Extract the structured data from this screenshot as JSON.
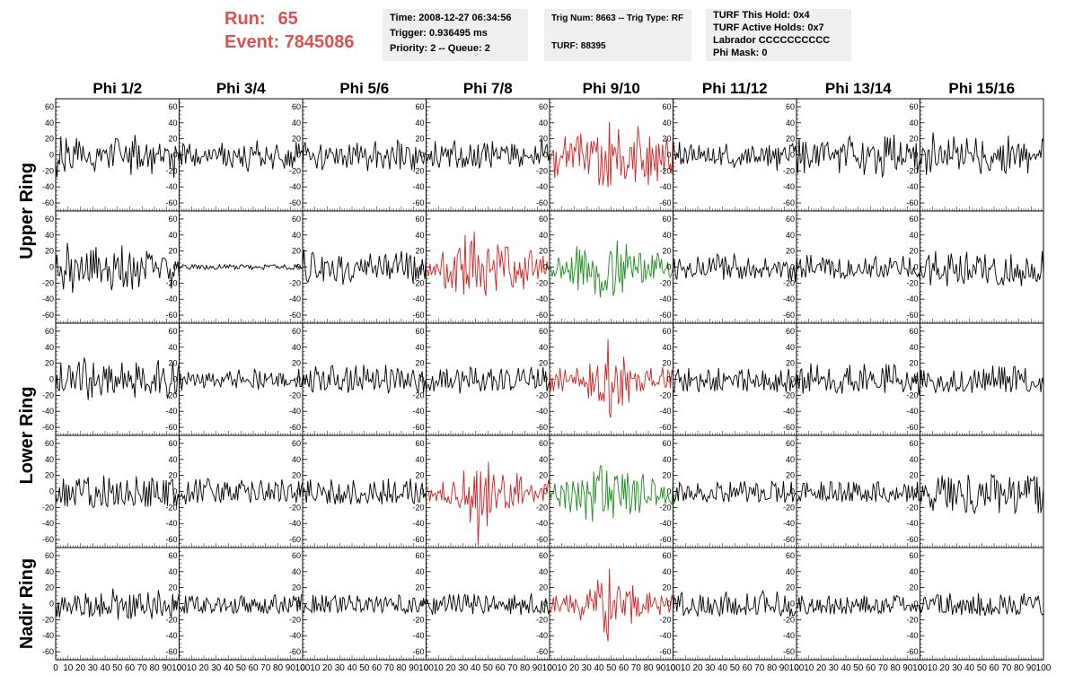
{
  "header": {
    "run_label": "Run:",
    "run_value": "65",
    "event_label": "Event:",
    "event_value": "7845086",
    "time": "Time: 2008-12-27 06:34:56",
    "trigger": "Trigger: 0.936495 ms",
    "priority": "Priority: 2 -- Queue: 2",
    "trig_num": "Trig Num: 8663 -- Trig Type: RF",
    "turf": "TURF: 88395",
    "turf_hold": "TURF This Hold: 0x4",
    "turf_active": "TURF Active Holds: 0x7",
    "labrador": "Labrador CCCCCCCCCC",
    "phi_mask": "Phi Mask: 0",
    "accent_color": "#d9534f"
  },
  "chart_data": {
    "type": "line",
    "columns": [
      "Phi 1/2",
      "Phi 3/4",
      "Phi 5/6",
      "Phi 7/8",
      "Phi 9/10",
      "Phi 11/12",
      "Phi 13/14",
      "Phi 15/16"
    ],
    "ring_labels": [
      {
        "text": "Upper Ring",
        "rows": [
          0,
          1
        ]
      },
      {
        "text": "Lower Ring",
        "rows": [
          2,
          3
        ]
      },
      {
        "text": "Nadir Ring",
        "rows": [
          4,
          4
        ]
      }
    ],
    "xlim": [
      0,
      100
    ],
    "ylim": [
      -70,
      70
    ],
    "x_ticks": [
      0,
      10,
      20,
      30,
      40,
      50,
      60,
      70,
      80,
      90,
      100
    ],
    "y_ticks": [
      -60,
      -40,
      -20,
      0,
      20,
      40,
      60
    ],
    "colors": {
      "normal": "#000000",
      "red": "#cc2222",
      "green": "#1a8c1a"
    },
    "row_color_codes": [
      [
        "k",
        "k",
        "k",
        "k",
        "r",
        "k",
        "k",
        "k"
      ],
      [
        "k",
        "k",
        "k",
        "r",
        "g",
        "k",
        "k",
        "k"
      ],
      [
        "k",
        "k",
        "k",
        "k",
        "r",
        "k",
        "k",
        "k"
      ],
      [
        "k",
        "k",
        "k",
        "r",
        "g",
        "k",
        "k",
        "k"
      ],
      [
        "k",
        "k",
        "k",
        "k",
        "r",
        "k",
        "k",
        "k"
      ]
    ],
    "traces": [
      [
        "-7,-28,-6,-12,23,-9,-12,-21,21,2,10,-10,-16,-16,11,0,21,-6,17,7,-8,11,-1,-6,-9,-3,4,-10,-13,-10,-21,-8,8,-2,8,-8,4,6,2,6,-4,-16,10,13,-14,3,20,20,19,10,1,-4,-8,0,11,-4,-10,9,-25,17,-3,25,7,-18,12,-15,-5,-14,-3,2,13,-15,-3,7,-24,9,-12,0,2,1,14,-8,-2,-9,8,5,7,4,-17,2,-6,-29,11,4,2,-10",
        "-10,4,-13,14,11,-11,8,1,14,-2,-9,0,-14,8,-10,-2,-12,-3,-2,-2,5,-3,-8,7,-4,-5,5,7,4,-5,-2,9,-1,15,-12,8,-14,-10,6,-4,-11,-16,5,3,-2,-3,8,-11,-2,-15,11,-4,-16,-21,-8,9,9,-1,4,1,18,-1,4,-14,-4,-8,-12,10,0,-3,-6,2,-18,-5,4,13,5,-4,-6,-6,-10,-17,1,-13,6,-14,4,-16,-2,-9,16,-3,14,1,5,2",
        "-16,11,15,1,8,3,-6,-5,2,-2,-9,-17,-2,4,13,-19,-14,-10,7,-5,0,9,3,3,-2,-11,8,-11,-3,7,7,-13,-1,-3,-16,-2,13,-11,-12,9,7,-2,15,-11,2,11,-3,-3,8,-3,-20,-5,-1,-9,-6,9,17,-16,4,1,2,-9,-17,-1,-4,7,-3,-18,3,10,0,-7,-12,18,15,-18,14,-6,-12,-10,9,9,7,-5,-19,1,-19,10,-11,-2,6,2,-8,-11,2,3",
        "-1,-8,0,-6,5,-14,-10,17,-3,-10,-16,-6,11,-2,4,8,-3,7,-15,8,0,12,18,-4,-16,-5,-6,9,-16,-4,-15,-2,-12,-3,13,-4,-14,7,-13,-11,13,-17,-10,3,8,15,-8,14,3,-7,-16,17,-2,4,8,-5,-2,-5,10,5,7,2,11,5,-11,-11,14,-6,13,-5,8,-2,-15,-2,-13,8,-2,-1,-2,-4,-3,0,-8,-11,11,-6,2,-11,0,20,-1,2,10,13,-7,2",
        "-14,-2,2,6,-29,4,-26,-14,-5,-1,-4,6,23,-15,5,-8,14,13,-16,10,4,21,23,-14,27,4,-1,-19,-2,16,-24,-4,17,1,17,11,3,22,-38,-27,11,-38,-25,5,-16,-40,41,-38,14,-2,10,4,-18,32,4,-26,-2,-3,-30,-26,-13,-16,9,9,-18,16,-34,4,36,19,7,-19,-6,-27,-25,9,-38,23,-26,9,-4,-20,12,-33,14,-6,-13,13,-21,0,20,6,-18,-11,-24,27",
        "18,7,-6,3,-4,16,-12,-4,-11,9,4,-11,-2,9,13,-7,7,-5,-6,-5,12,-5,4,-2,5,-8,-5,9,-7,-5,-7,8,-11,-6,-6,-5,10,-13,2,1,4,14,-2,-10,-10,-10,-6,-16,-11,-8,-5,-3,-13,2,-7,1,7,-11,8,-10,-3,11,6,-9,-2,-9,-2,-8,8,6,-8,1,9,-14,12,-11,-4,5,-5,8,-20,9,-12,3,0,6,9,-3,-5,-7,12,11,14,4,11,-4",
        "-1,-23,21,-10,-7,16,-23,16,3,-5,-16,-7,-9,7,13,-11,11,-14,4,13,15,-7,11,12,16,-1,-6,0,3,-5,7,0,6,-23,10,3,13,10,-14,1,19,23,10,16,-2,-1,-8,-3,-12,-17,-5,15,-25,-14,-2,10,-3,5,7,10,6,-24,-13,7,-9,-2,-28,-22,23,-3,22,-1,21,-6,-6,25,-16,-18,-1,-9,16,-13,-4,-9,-8,14,3,8,-5,3,10,-16,15,-23,-12,-6",
        "-3,-12,8,6,2,-25,5,6,-22,-9,28,12,-11,-13,-10,8,11,-9,-10,6,0,-13,19,-5,-3,-5,23,8,2,10,-18,-4,14,-11,-11,-2,21,3,2,3,-1,-9,4,21,-2,-4,-17,-24,17,-4,0,-9,-12,-19,-19,-1,-10,2,1,-6,7,-8,11,-20,12,-20,-23,-7,24,-17,5,11,4,-12,-1,10,14,-16,8,-8,14,-6,8,-23,3,-6,-3,0,1,-6,1,-1,6,-4,20,16"
      ],
      [
        "-2,15,-10,-11,1,-11,-28,-4,-10,30,14,-18,10,-32,-14,9,7,3,-17,1,13,-15,-11,-4,17,-14,-17,21,-14,21,-8,25,-14,12,5,-19,-4,-3,-3,12,-18,1,-9,-29,-20,17,-3,7,12,-12,-16,27,-25,-17,-5,-25,4,18,-8,-28,12,-11,-11,7,-25,-7,12,-1,-2,-15,20,10,16,10,15,-6,-4,7,-2,-1,-14,0,11,11,11,8,-4,-15,-2,-27,-6,-12,7,-1,7,-14",
        "-3,-1,1,3,2,2,-1,-1,-3,-1,3,-1,3,2,-2,2,-2,2,2,-1,-3,2,-2,-2,1,-1,1,-2,-3,-2,-1,3,-1,-1,0,3,-1,2,-1,3,1,1,2,-3,1,-2,-2,2,3,2,0,0,2,2,-2,2,-3,0,-1,1,-1,0,0,-1,-1,-3,3,1,2,0,2,2,2,3,2,-1,1,-2,-1,1,-1,3,0,-3,-2,-1,-3,-2,-3,3,0,3,-1,1,-2,0",
        "-2,22,-2,-16,-19,-14,-10,17,18,11,-6,-13,-10,-5,-8,13,-18,6,5,7,3,-12,-5,8,-8,-16,-17,2,14,-1,13,-22,-12,-4,1,6,-14,-18,-11,-13,0,4,6,0,-5,10,-4,-6,9,-10,7,0,17,3,-8,-1,2,-13,-1,14,2,-7,-9,12,16,-11,8,-15,-1,-8,5,9,17,-7,4,7,20,-2,-10,-4,18,-15,10,15,-7,-20,13,-16,0,-15,1,-10,10,-2,-15,14",
        "-5,-4,-11,4,-9,-6,1,-10,4,0,-5,-10,10,19,-23,-27,4,-19,-12,-5,-26,-2,13,-31,14,20,24,-4,4,-34,40,-21,-9,-27,27,33,-13,44,-6,-25,15,2,-25,4,1,-28,-36,18,23,-6,-3,-3,9,-6,-30,28,18,-1,20,6,-12,25,24,25,-7,-11,-24,-25,7,-20,-4,-10,6,-14,-3,-28,12,-5,-17,9,20,20,-10,-7,-1,10,-15,1,10,-7,14,-8,-8,7,-3,0",
        "-4,1,-12,-4,-11,-8,-1,12,3,-14,2,-9,-6,7,-6,-4,-18,12,-21,-8,3,26,-29,22,-8,15,-22,21,13,-19,5,-12,-12,8,-4,-34,2,-12,-9,-38,-18,-29,-26,-16,-29,-12,13,20,14,-36,-29,-10,33,-11,-20,16,-32,7,-15,29,-2,12,13,-3,-13,14,-3,0,-8,17,17,-19,-18,9,-16,-5,4,-8,-12,15,-14,9,-3,18,13,-2,10,-5,-8,-3,-1,6,-11,-13,-7,-1",
        "-5,10,-12,-15,3,10,0,-4,0,-3,-14,1,-4,5,-7,-12,-8,-9,-6,13,4,-6,-9,6,-9,-10,-8,-2,12,-6,4,11,-2,-4,16,14,0,3,11,-16,13,5,-10,3,-13,-1,-1,17,8,-3,-1,-14,1,-15,-6,1,-12,0,11,-6,-11,-1,2,-14,-1,-5,-7,-2,-13,-1,-3,11,-4,0,-12,-8,-2,-2,4,2,-8,6,5,-13,-4,5,1,6,2,-16,-1,-18,-6,2,-19,9",
        "13,-3,2,10,-13,-2,-5,-13,15,3,-7,15,-5,-5,-7,-2,3,3,5,-5,12,8,-8,10,3,10,-10,7,5,-14,-3,-5,-6,10,-14,-8,-7,-14,-10,-11,9,-10,4,-6,-11,-7,-7,-2,4,-4,-7,-8,-2,11,-7,-8,4,-13,1,-2,10,13,-9,-12,-10,2,-7,-13,3,0,-11,-2,12,-1,1,6,7,6,-3,-7,-9,1,14,-2,-2,-3,-12,12,-7,-9,-1,-6,-9,-12,-8,-16",
        "6,-5,-12,-13,-5,8,10,15,-23,-6,5,-5,20,-10,-1,-15,-14,-10,-10,2,-8,-24,15,-3,17,7,-7,-8,4,-18,-15,14,-10,-17,-21,8,19,-16,-3,-12,-13,3,0,-9,14,5,11,7,-14,-6,16,-12,-20,-1,-3,1,2,11,-6,-17,-22,-21,-19,-13,-23,-11,10,-14,-15,-18,16,-12,-18,-1,-13,4,-14,-3,-24,-4,-13,-14,11,4,-12,-12,4,-15,0,-16,-18,-8,-16,-7,20,-8"
      ],
      [
        "-16,5,-13,-14,21,-10,-14,-12,-4,-1,17,16,-11,10,-3,-12,3,15,22,-13,-13,13,27,20,-7,-26,1,2,-23,21,-8,-7,-1,6,-10,-20,-6,16,0,13,-17,17,-4,13,-13,-17,4,-10,3,-6,1,21,-12,8,-5,-10,11,-3,5,-12,-5,-23,21,-1,16,0,-11,14,4,-15,-6,-7,-9,-18,-3,-5,6,-15,17,24,-17,-1,6,14,-2,-7,-24,-19,-6,-6,21,2,-18,-15,12,21",
        "-13,8,-14,1,3,-3,-6,9,1,-2,5,5,-8,-3,6,2,-5,-4,6,-11,-7,6,-2,8,-2,-2,7,-8,-5,0,-1,-5,-10,3,-3,1,3,7,-1,10,3,-8,-1,0,-11,5,12,1,-4,3,-3,-3,0,-1,-3,-5,-9,-10,13,8,-2,-13,10,-6,-6,-10,8,-2,1,2,3,8,-6,-6,-4,4,-9,7,7,-6,7,-9,0,-7,-6,-6,-1,-1,-2,1,-10,-4,13,-9,-9,2",
        "-10,5,-7,6,-4,-10,11,-14,-16,2,16,6,9,-1,-14,3,10,-13,-12,-9,6,-7,16,17,6,-7,-6,6,-12,-10,-14,0,-2,8,15,-17,-9,11,-13,-12,3,17,-7,-8,3,-6,-13,18,4,-2,13,-3,0,-4,9,-13,-7,12,10,-11,-7,-1,-1,-3,18,-6,-17,-13,12,11,3,-11,0,14,8,-10,11,4,-12,0,-8,8,-6,-9,5,12,2,-6,-13,-17,6,3,10,-17,-1,-11",
        "-14,-7,-7,-14,-5,4,-15,-4,-2,-8,-2,12,-10,9,8,-10,13,-10,-7,2,-11,-6,-3,3,12,6,-18,-5,10,-3,4,4,-4,-10,15,13,-5,-5,14,-5,-1,-6,-15,-5,7,-14,-7,1,9,2,13,-14,4,-1,-3,-14,-9,8,13,-12,-11,5,11,7,5,-14,-9,-11,-9,-4,4,14,-2,-1,8,12,2,-4,-5,-7,9,15,0,5,-11,-9,13,-8,-8,-5,15,-3,10,-15,-7,-3",
        "12,-14,2,-15,-3,6,3,-12,14,-2,-15,0,12,-3,-2,-2,4,5,-5,3,-6,14,6,-9,0,-7,3,-10,-4,-6,-24,20,-21,9,-16,-6,4,17,-27,-16,-27,-17,-28,20,-1,50,-42,-48,-3,-17,-9,17,5,-31,-23,12,-33,28,10,-14,9,-29,11,1,1,1,8,-15,6,2,-15,-4,-14,-7,8,10,2,-2,14,-8,-2,-8,-6,-4,-6,4,4,15,-2,-10,-9,11,8,-11,12,4",
        "-13,-16,4,7,13,-4,3,-6,-15,7,-6,-15,14,-9,2,-1,0,2,3,-12,-16,7,-3,-1,-10,0,-5,12,8,-13,-9,2,-15,3,-14,14,-8,-12,-13,8,-3,3,0,4,2,-3,-7,3,5,4,-11,10,7,12,-14,1,-7,-15,13,2,-4,-5,0,-10,5,2,-9,-7,-6,11,-14,7,-5,-7,2,-13,-8,-4,-14,6,-16,3,-8,11,-7,-9,-4,-16,3,13,-15,0,-10,-8,-6,11",
        "-16,5,-12,11,13,-18,3,-11,-10,9,-15,20,-1,-3,2,-3,18,-6,-3,3,0,3,0,-14,-4,13,-13,-6,-1,-2,-15,-17,-11,-10,-2,-18,-1,6,3,14,-7,18,-8,-3,-14,-3,-3,-11,-15,11,6,-12,19,8,-13,-1,2,10,-2,7,-5,-5,-10,-10,-10,-7,14,6,-17,19,-4,18,-3,-2,-5,18,16,-4,1,-5,-6,0,-16,-12,-7,9,-4,-8,-14,3,-5,7,-6,9,-20,-6",
        "-11,12,-9,11,-6,-10,8,4,-2,-1,-3,-10,-17,-10,2,-10,4,-3,-15,-10,-8,-3,-16,-8,3,-10,11,-4,-15,-10,-12,-9,10,-14,-15,-12,-9,-6,-1,4,-17,-2,12,-4,-11,10,-3,-7,-11,13,-14,8,-7,8,-8,-3,17,-10,2,-8,0,16,-12,15,-7,15,-16,4,-5,4,-16,-9,15,16,-13,10,11,-1,7,-1,-4,14,-12,-15,-15,-12,-3,-3,-8,-10,-8,-7,1,-16,2,-6"
      ],
      [
        "-4,-13,-8,5,-14,-7,16,-18,9,-19,8,-11,-7,6,-8,-17,14,7,16,-2,-5,-1,14,11,10,18,-17,-4,-17,-20,-18,6,-7,2,-2,-17,-15,20,-6,-17,-19,17,0,-2,8,-16,-13,10,-16,2,12,-10,-13,-16,-1,14,-12,1,-4,-9,-17,-15,19,3,-3,-5,-13,-8,13,-19,6,-19,13,-18,17,13,-7,-7,13,-9,-8,-13,-13,14,-16,14,-18,11,9,14,15,-17,-4,-18,-3,-10",
        "-7,-7,-3,-9,-5,-16,-3,12,-13,-5,0,-10,8,15,-14,-3,15,-2,-12,8,5,8,16,14,5,2,-3,-7,-13,3,10,-9,-14,5,-11,12,2,11,-6,6,-10,-10,-2,-10,7,-11,10,3,14,8,8,-1,2,5,-8,-14,12,3,1,-10,-10,-8,8,14,4,-9,-11,1,-7,11,-10,2,0,-10,11,8,8,-12,-9,15,7,-3,-12,-11,6,7,9,-8,-6,-1,-14,-3,13,-7,6,12",
        "-8,4,-1,-14,13,-6,15,-4,-7,-10,-11,-6,11,6,1,-5,5,1,-3,-15,2,-14,15,5,-6,-16,-3,-12,9,-15,-4,-14,0,-9,-3,9,-2,-16,-6,14,5,-6,-14,-9,-15,-2,-5,-4,-2,-10,-14,-7,10,-2,-10,12,3,-5,-8,-12,0,-16,14,-5,-4,-13,16,-8,-3,-14,3,12,-14,-6,-8,-4,-3,-7,8,6,13,-10,-1,16,-5,-14,-15,11,-2,-13,-13,3,11,-8,-2,-9",
        "8,3,-1,-12,2,-6,-4,-2,-12,0,-2,1,-11,12,-11,-8,-14,-6,-14,-15,-1,12,6,-10,-7,-16,-20,-11,-10,26,-17,-5,-16,6,-39,-5,-20,19,-21,26,-67,-27,25,-30,-21,4,17,-43,37,-26,-23,5,21,0,-21,-6,3,-2,3,21,10,-21,-13,-16,-21,9,-12,-18,6,-4,23,-15,13,19,-15,-7,0,1,2,-4,1,8,-4,-13,1,-5,-8,-3,3,4,-12,8,9,-1,14,8",
        "5,-9,-1,-3,10,-5,-10,-9,-19,8,3,1,-21,12,8,-10,-26,-10,13,2,-2,-24,11,-13,-20,14,3,-5,-35,13,-3,-1,-7,-38,25,-15,14,19,13,32,32,-24,-24,-15,26,-24,6,-12,2,-33,19,15,20,2,-11,-18,22,-10,16,-22,23,5,-28,-18,7,14,-24,13,8,-27,-15,15,22,-9,-11,-14,-6,-9,-11,16,12,9,-17,-5,-10,-8,5,-9,6,-15,-9,-3,-11,-13,-16,12",
        "-1,-13,-9,5,-12,11,8,3,-12,-1,-10,6,6,-8,1,-8,-10,-3,-7,10,-3,3,0,-11,-4,-9,-13,-6,-8,1,2,-8,-8,-10,12,6,4,7,-6,-13,-2,-3,-4,-13,12,-7,0,5,-7,4,-5,1,12,-3,2,13,4,-13,-7,5,4,-4,5,-6,10,8,-13,-11,2,-2,2,-10,-10,-9,-9,-8,13,9,7,10,-13,5,-5,-8,-4,13,-14,-9,-2,-5,-4,12,-13,-6,-2,-3",
        "-12,-12,-6,-12,-2,10,10,-8,11,0,1,3,-4,-5,-1,-8,-7,2,-10,12,-11,8,-4,-11,-6,-10,12,12,-9,-4,2,-11,-10,11,9,-13,-3,1,-11,-2,12,-12,-1,-12,12,-1,10,-5,8,1,-11,-4,-8,2,-13,2,-8,-7,-11,10,3,-13,11,12,-4,-6,-8,5,-4,-10,-12,-13,0,-5,1,-5,-11,5,-9,-3,-2,-6,-1,9,5,-13,8,-8,-5,7,-11,-1,-8,12,-11,-10",
        "-4,-13,7,-6,7,3,-6,-3,-20,-9,-24,-8,-13,3,17,-3,-2,20,2,15,-13,-20,18,-14,16,-24,10,-3,-16,1,14,9,-6,-4,-11,-26,-25,21,12,-16,-11,-23,-27,-20,-18,0,10,-6,9,-4,-18,11,-9,-7,-13,21,18,20,-10,14,11,-27,10,-3,-5,3,-16,-12,-6,18,-9,7,12,-27,-24,-10,13,-9,-1,-4,-4,14,-8,20,-3,16,13,14,19,-16,18,-27,6,-27,-17,5"
      ],
      [
        "0,-16,2,-17,-5,8,-8,8,-2,-10,1,-2,-13,-4,-1,10,-9,9,6,-5,-14,-11,-13,13,0,8,-17,3,-15,-13,-11,8,-8,-1,-16,13,-13,3,-7,-5,-13,-3,-12,-7,19,6,3,11,-20,1,2,7,-9,-2,3,-16,-18,11,-19,-9,11,-16,7,-6,11,12,-9,-1,-12,-10,-8,14,-3,-9,-19,4,7,-5,-13,17,8,-9,-15,-2,4,-9,-6,-1,-14,-16,12,-9,4,-8,5,13",
        "-3,-6,-9,-3,-12,10,-12,-1,9,3,10,0,-7,5,9,-9,-9,-4,-12,4,-10,7,4,0,-1,-11,-7,-9,0,-2,7,5,-11,-2,0,7,-9,-4,-4,-3,3,-10,-12,6,-11,-9,-3,8,10,-4,9,-9,1,-11,1,-11,5,-3,6,-3,1,-9,2,-11,-2,-12,6,-10,-12,-3,-7,5,-4,10,11,-5,-9,-12,1,2,-10,9,-4,-7,-11,7,-4,-2,10,4,8,-10,9,-8,11,11",
        "-9,-11,-1,-5,-6,-8,-8,-11,11,-11,9,-9,0,-1,-10,11,-6,-11,10,-4,3,-11,4,5,7,10,0,-11,-7,8,-10,8,6,-8,-4,1,11,1,2,-7,-6,-9,10,3,5,-10,-6,-8,0,4,-8,8,3,5,-5,-11,2,9,-3,1,6,-11,-8,5,8,-3,1,5,6,-2,1,-8,-1,-9,11,9,-7,-9,-6,-12,-7,-11,5,-2,-11,7,7,-2,-10,-10,-2,3,-3,7,-1,7",
        "-1,5,-2,-6,-8,-14,7,-13,5,-8,-4,4,-3,6,9,-9,-6,0,12,2,-8,11,3,-10,-1,12,-5,-10,-8,8,12,-3,11,-4,-4,2,-13,12,-2,-3,10,5,-1,-7,-12,-9,10,6,-10,-2,-4,3,10,-7,-1,-7,2,2,-3,2,-2,-7,-1,-9,7,-13,7,-7,11,-6,0,-2,2,-14,5,-5,4,-8,-1,-12,5,13,-8,-11,-7,-3,-10,-9,-12,4,-10,-11,7,-2,-12,-8",
        "-6,-10,-3,8,-10,10,0,-4,-10,-2,1,7,-2,11,-8,-10,11,-5,2,-12,6,0,-4,-10,-21,-4,-14,-5,-3,12,-6,18,4,5,-9,16,-9,30,12,7,26,-2,-36,-9,-36,-47,44,-19,-16,3,4,-20,12,22,17,-3,-12,5,-15,15,9,13,15,-25,23,-6,9,-16,8,-16,-11,-12,-1,-5,-7,12,-12,14,-4,-3,2,8,1,-6,-4,-14,10,3,-3,-2,7,3,-11,-5,11,3",
        "-11,8,5,-10,10,-4,12,14,-15,-11,-6,-5,-12,-7,-8,7,-2,-8,-10,-16,-1,11,-10,9,-9,-11,-10,8,-12,0,-14,-3,5,1,-5,-12,-15,9,-13,2,10,15,-11,8,-1,-12,2,-13,7,-14,-6,-1,-10,-6,-7,-4,-14,13,-5,-9,-6,-6,-5,9,-13,-13,-1,9,11,16,12,-11,8,-2,-2,-8,-4,-4,-11,-3,15,5,-11,-15,-8,-10,10,-7,-10,3,-16,-6,-15,-15,-10,-10",
        "-4,-5,8,-10,10,4,-2,-10,-13,-11,0,-3,6,-11,-6,-8,5,-8,5,-12,-2,-3,-4,-11,5,10,-13,-2,-1,-13,6,-2,-5,-7,7,-12,-5,-4,-13,8,-3,-5,-12,3,-4,-2,6,-3,0,-10,6,-8,10,-11,9,-8,-1,-11,-5,-3,-9,5,4,-12,-9,-12,4,-11,3,6,-4,-1,-11,-4,-5,10,3,10,9,8,-2,-2,8,-8,-7,-2,-2,-2,-10,0,-6,-1,-10,-2,-2,-11",
        "-3,-11,-6,7,8,1,-7,-6,5,3,6,-2,6,11,11,-11,11,-10,-11,-10,-11,8,-10,13,3,-14,-4,-2,-12,1,-6,4,-14,5,-1,-9,4,2,-12,4,-13,9,-9,-7,-13,13,-15,7,-9,-5,-15,-9,0,-12,7,-14,-6,-10,-4,-6,-9,-13,11,6,-5,8,-5,-13,-4,10,-4,-11,4,-2,-14,-8,-13,-11,10,-1,13,-1,-2,4,8,8,-1,-5,0,8,4,10,0,-11,-14,-13"
      ]
    ]
  }
}
